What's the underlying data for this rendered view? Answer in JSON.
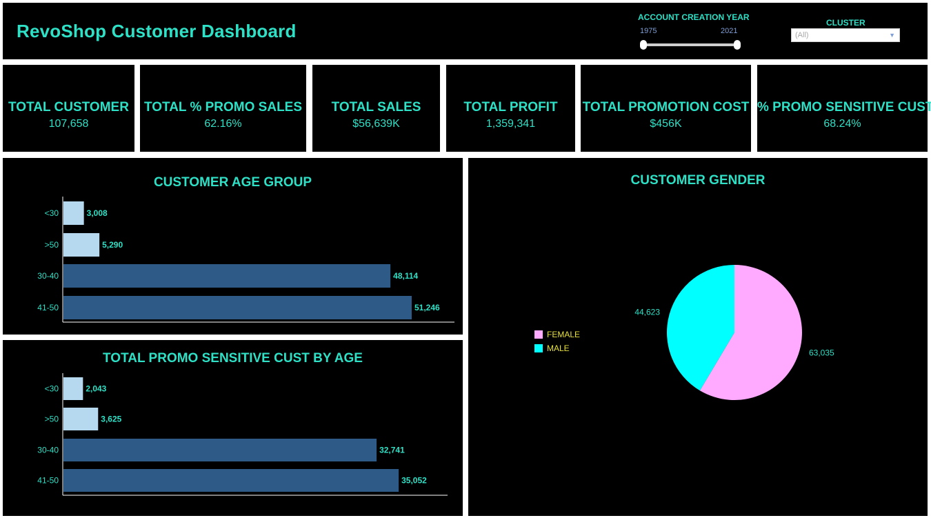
{
  "header": {
    "title": "RevoShop Customer Dashboard",
    "account_creation_year": {
      "label": "ACCOUNT CREATION YEAR",
      "min": "1975",
      "max": "2021"
    },
    "cluster": {
      "label": "CLUSTER",
      "selected": "(All)"
    }
  },
  "kpis": [
    {
      "title": "TOTAL CUSTOMER",
      "value": "107,658"
    },
    {
      "title": "TOTAL % PROMO SALES",
      "value": "62.16%"
    },
    {
      "title": "TOTAL SALES",
      "value": "$56,639K"
    },
    {
      "title": "TOTAL PROFIT",
      "value": "1,359,341"
    },
    {
      "title": "TOTAL PROMOTION COST",
      "value": "$456K"
    },
    {
      "title": "% PROMO SENSITIVE CUST",
      "value": "68.24%"
    }
  ],
  "colors": {
    "teal": "#2de0c6",
    "light_bar": "#b7d9ef",
    "dark_bar": "#2e5a87",
    "female": "#ffaaff",
    "male": "#00ffff",
    "legend_text": "#e6e03a"
  },
  "chart_data": [
    {
      "type": "bar",
      "orientation": "horizontal",
      "title": "CUSTOMER AGE GROUP",
      "categories": [
        "<30",
        ">50",
        "30-40",
        "41-50"
      ],
      "values": [
        3008,
        5290,
        48114,
        51246
      ],
      "labels": [
        "3,008",
        "5,290",
        "48,114",
        "51,246"
      ],
      "xlim": [
        0,
        55000
      ]
    },
    {
      "type": "bar",
      "orientation": "horizontal",
      "title": "TOTAL PROMO SENSITIVE CUST BY AGE",
      "categories": [
        "<30",
        ">50",
        "30-40",
        "41-50"
      ],
      "values": [
        2043,
        3625,
        32741,
        35052
      ],
      "labels": [
        "2,043",
        "3,625",
        "32,741",
        "35,052"
      ],
      "xlim": [
        0,
        38000
      ]
    },
    {
      "type": "pie",
      "title": "CUSTOMER GENDER",
      "categories": [
        "FEMALE",
        "MALE"
      ],
      "values": [
        63035,
        44623
      ],
      "labels": [
        "63,035",
        "44,623"
      ],
      "legend": "left"
    }
  ]
}
